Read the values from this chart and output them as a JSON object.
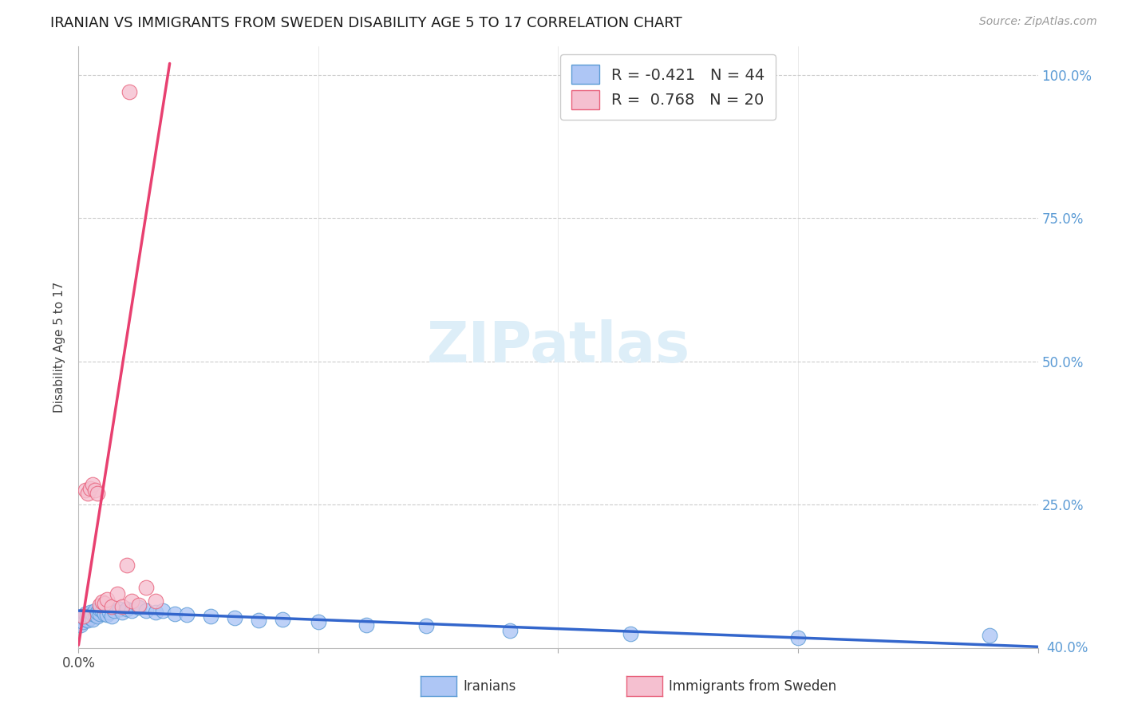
{
  "title": "IRANIAN VS IMMIGRANTS FROM SWEDEN DISABILITY AGE 5 TO 17 CORRELATION CHART",
  "source": "Source: ZipAtlas.com",
  "ylabel": "Disability Age 5 to 17",
  "blue_face": "#aec6f5",
  "blue_edge": "#5b9bd5",
  "blue_line": "#3366cc",
  "pink_face": "#f5c0d0",
  "pink_edge": "#e8607a",
  "pink_line": "#e84070",
  "right_axis_color": "#5b9bd5",
  "background": "#ffffff",
  "grid_color": "#cccccc",
  "watermark_text": "ZIPatlas",
  "watermark_color": "#ddeef8",
  "title_color": "#1a1a1a",
  "iranians_x": [
    0.001,
    0.002,
    0.002,
    0.003,
    0.003,
    0.004,
    0.004,
    0.005,
    0.005,
    0.006,
    0.006,
    0.007,
    0.007,
    0.008,
    0.008,
    0.009,
    0.009,
    0.01,
    0.011,
    0.012,
    0.013,
    0.014,
    0.015,
    0.017,
    0.018,
    0.02,
    0.022,
    0.025,
    0.028,
    0.032,
    0.035,
    0.04,
    0.045,
    0.055,
    0.065,
    0.075,
    0.085,
    0.1,
    0.12,
    0.145,
    0.18,
    0.23,
    0.3,
    0.38
  ],
  "iranians_y": [
    0.04,
    0.045,
    0.055,
    0.05,
    0.06,
    0.048,
    0.058,
    0.052,
    0.062,
    0.05,
    0.06,
    0.058,
    0.065,
    0.055,
    0.062,
    0.06,
    0.068,
    0.065,
    0.06,
    0.058,
    0.062,
    0.055,
    0.065,
    0.068,
    0.062,
    0.068,
    0.065,
    0.07,
    0.065,
    0.062,
    0.065,
    0.06,
    0.058,
    0.055,
    0.052,
    0.048,
    0.05,
    0.045,
    0.04,
    0.038,
    0.03,
    0.025,
    0.018,
    0.022
  ],
  "sweden_x": [
    0.002,
    0.003,
    0.004,
    0.005,
    0.006,
    0.007,
    0.008,
    0.009,
    0.01,
    0.011,
    0.012,
    0.014,
    0.016,
    0.018,
    0.02,
    0.022,
    0.025,
    0.028,
    0.032,
    0.021
  ],
  "sweden_y": [
    0.055,
    0.275,
    0.27,
    0.278,
    0.285,
    0.275,
    0.27,
    0.075,
    0.08,
    0.078,
    0.085,
    0.072,
    0.095,
    0.072,
    0.145,
    0.082,
    0.075,
    0.105,
    0.082,
    0.97
  ],
  "blue_trend_x0": 0.0,
  "blue_trend_y0": 0.065,
  "blue_trend_x1": 0.4,
  "blue_trend_y1": 0.002,
  "pink_trend_x0": 0.0,
  "pink_trend_y0": 0.005,
  "pink_trend_x1": 0.038,
  "pink_trend_y1": 1.02,
  "xlim_min": 0.0,
  "xlim_max": 0.4,
  "ylim_min": 0.0,
  "ylim_max": 1.05,
  "ygrid": [
    0.25,
    0.5,
    0.75,
    1.0
  ],
  "legend_blue": "R = -0.421   N = 44",
  "legend_pink": "R =  0.768   N = 20",
  "leg_iranians": "Iranians",
  "leg_sweden": "Immigrants from Sweden",
  "title_fontsize": 13,
  "source_fontsize": 10,
  "ylabel_fontsize": 11,
  "tick_fontsize": 12,
  "legend_fontsize": 14
}
